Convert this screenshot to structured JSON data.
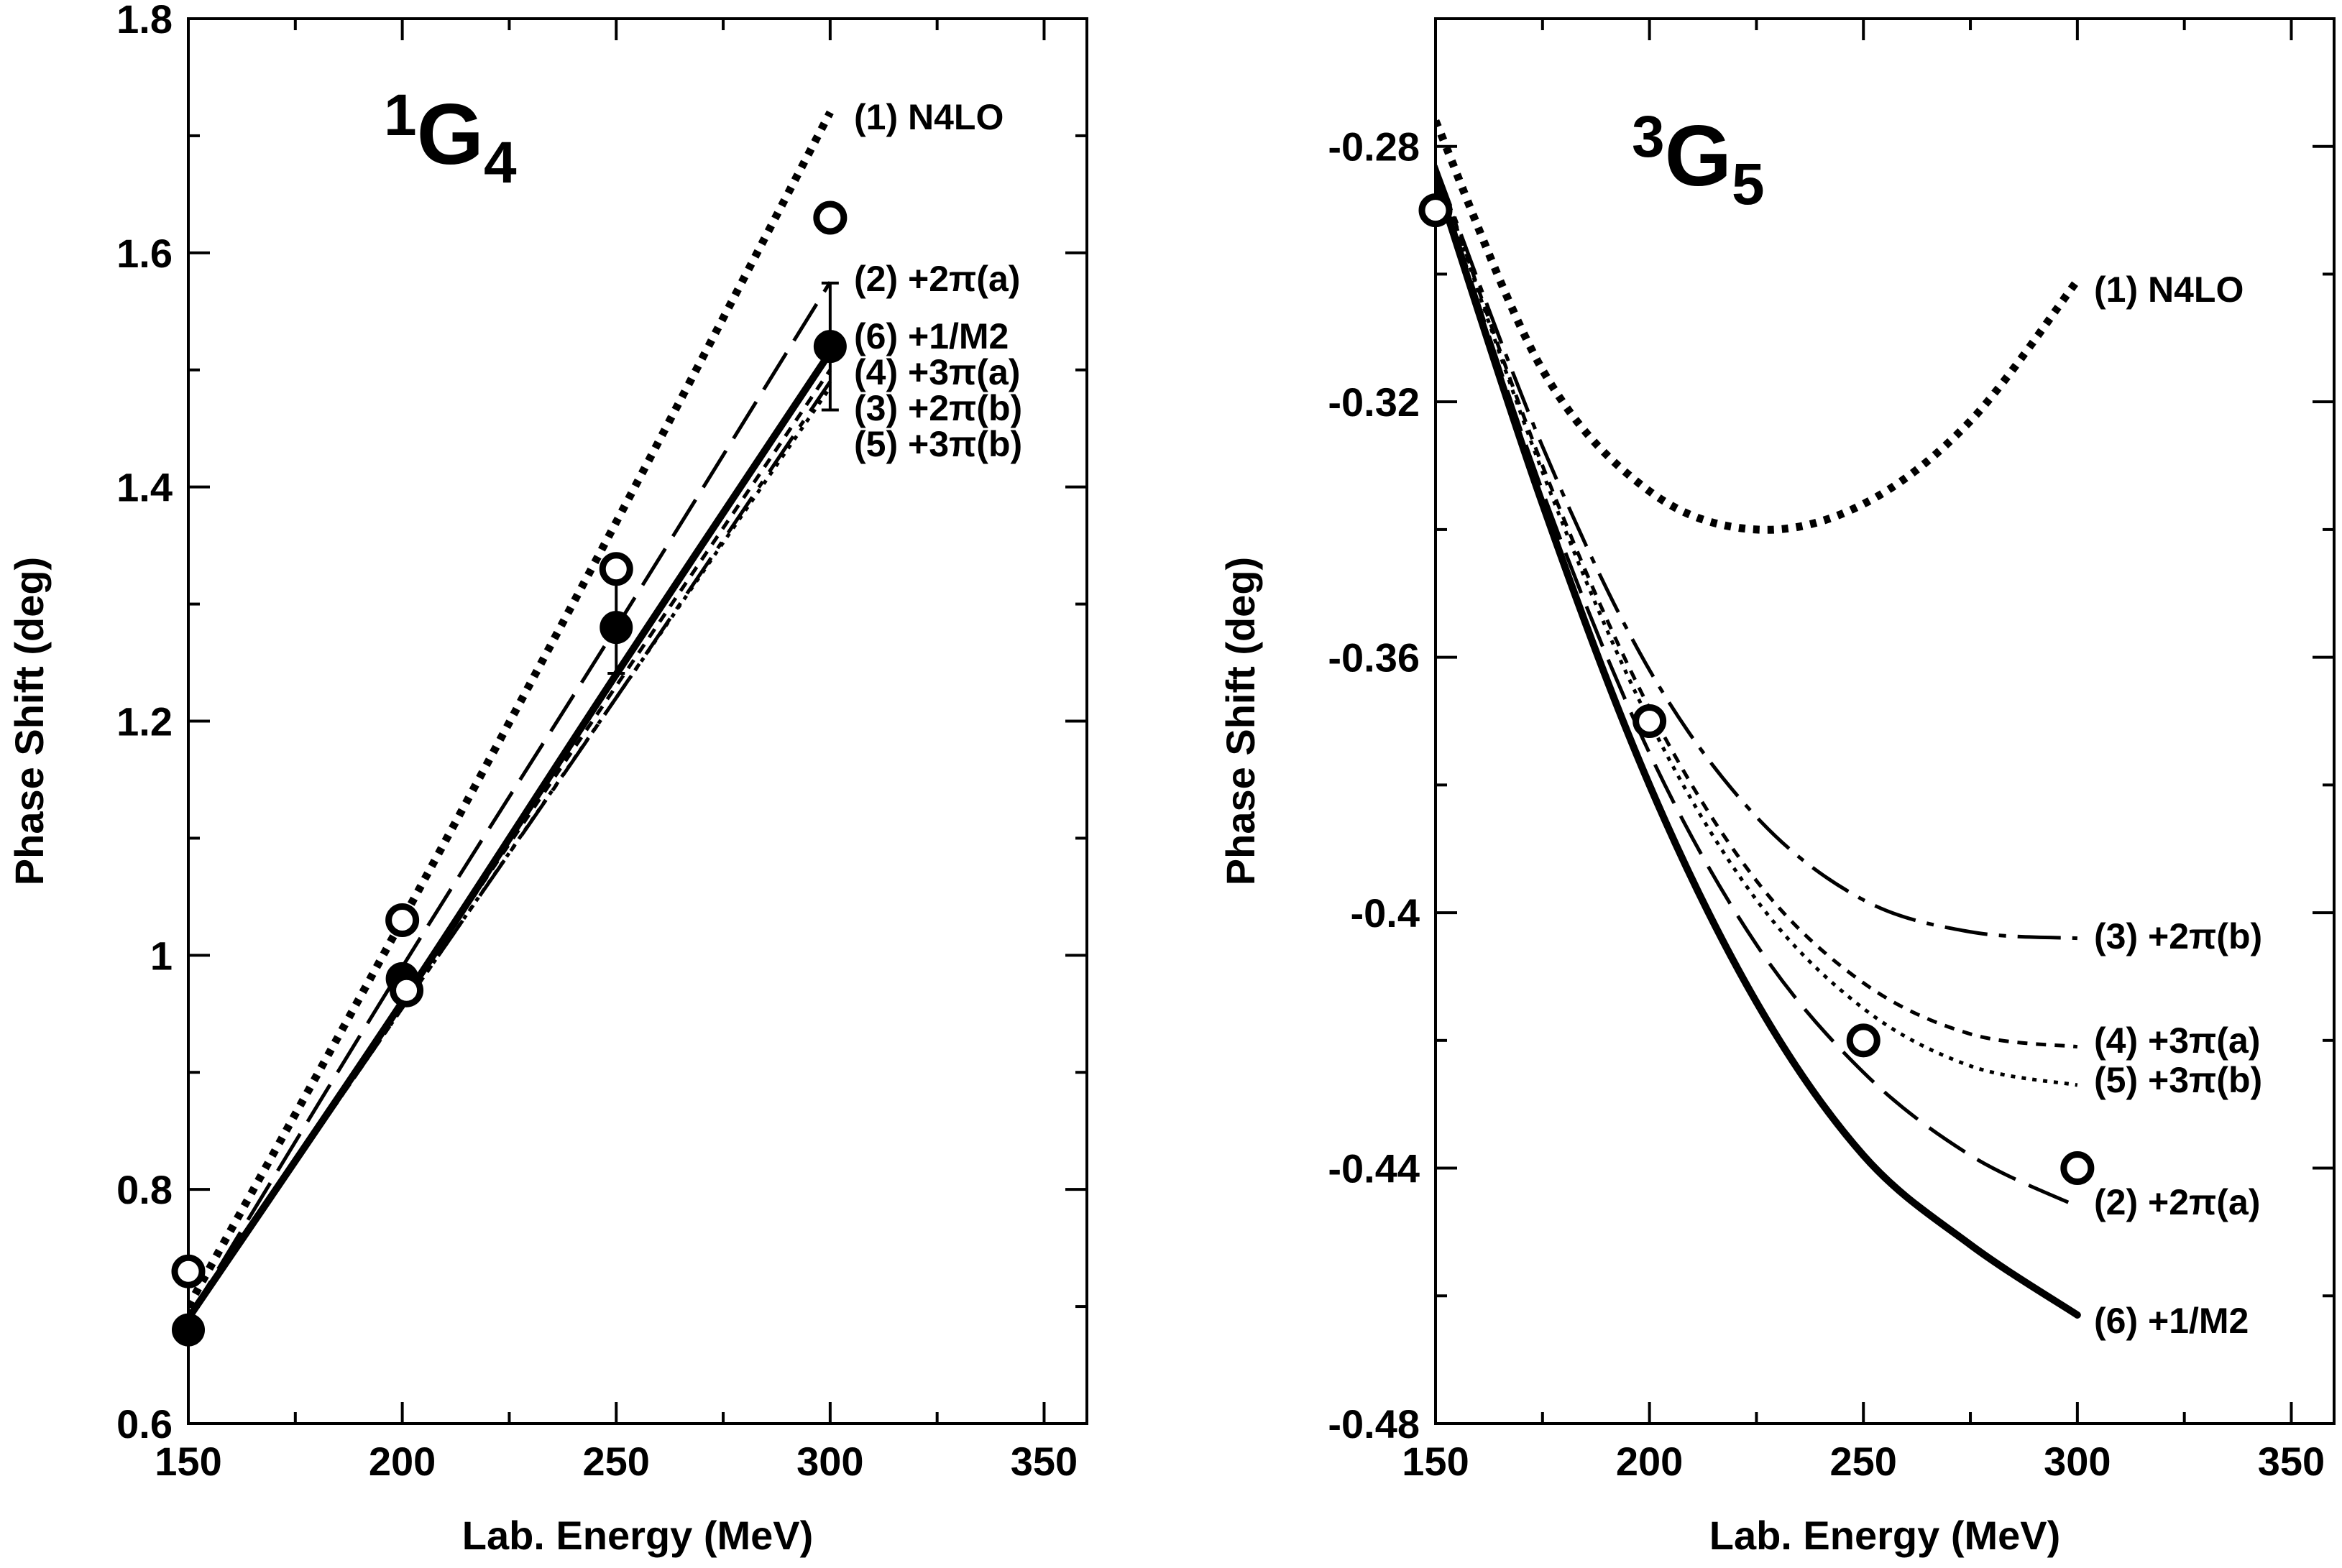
{
  "panels": [
    {
      "id": "1G4",
      "wave": {
        "sup": "1",
        "main": "G",
        "sub": "4"
      },
      "xlabel": "Lab. Energy (MeV)",
      "ylabel": "Phase Shift (deg)",
      "x_ticks": [
        "150",
        "200",
        "250",
        "300",
        "350"
      ],
      "y_ticks": [
        "0.6",
        "0.8",
        "1",
        "1.2",
        "1.4",
        "1.6",
        "1.8"
      ],
      "series_labels": [
        "(1) N4LO",
        "(2) +2π(a)",
        "(6) +1/M2",
        "(4) +3π(a)",
        "(3) +2π(b)",
        "(5) +3π(b)"
      ]
    },
    {
      "id": "3G5",
      "wave": {
        "sup": "3",
        "main": "G",
        "sub": "5"
      },
      "xlabel": "Lab. Energy (MeV)",
      "ylabel": "Phase Shift (deg)",
      "x_ticks": [
        "150",
        "200",
        "250",
        "300",
        "350"
      ],
      "y_ticks": [
        "-0.48",
        "-0.44",
        "-0.4",
        "-0.36",
        "-0.32",
        "-0.28"
      ],
      "series_labels": [
        "(1) N4LO",
        "(3) +2π(b)",
        "(4) +3π(a)",
        "(5) +3π(b)",
        "(2) +2π(a)",
        "(6) +1/M2"
      ]
    }
  ],
  "chart_data": [
    {
      "type": "line",
      "title": "1G4",
      "xlabel": "Lab. Energy (MeV)",
      "ylabel": "Phase Shift (deg)",
      "xlim": [
        150,
        360
      ],
      "ylim": [
        0.6,
        1.8
      ],
      "x_ticks": [
        150,
        200,
        250,
        300,
        350
      ],
      "y_ticks": [
        0.6,
        0.8,
        1.0,
        1.2,
        1.4,
        1.6,
        1.8
      ],
      "series": [
        {
          "name": "(1) N4LO",
          "style": "dotted-thick",
          "x": [
            150,
            200,
            250,
            300
          ],
          "y": [
            0.7,
            1.03,
            1.37,
            1.72
          ]
        },
        {
          "name": "(2) +2π(a)",
          "style": "long-dash",
          "x": [
            150,
            200,
            250,
            300
          ],
          "y": [
            0.69,
            0.99,
            1.28,
            1.575
          ]
        },
        {
          "name": "(6) +1/M2",
          "style": "solid-thick",
          "x": [
            150,
            200,
            250,
            300
          ],
          "y": [
            0.69,
            0.96,
            1.24,
            1.515
          ]
        },
        {
          "name": "(4) +3π(a)",
          "style": "short-dash",
          "x": [
            150,
            200,
            250,
            300
          ],
          "y": [
            0.69,
            0.96,
            1.23,
            1.5
          ]
        },
        {
          "name": "(3) +2π(b)",
          "style": "dash-dot",
          "x": [
            150,
            200,
            250,
            300
          ],
          "y": [
            0.69,
            0.955,
            1.22,
            1.49
          ]
        },
        {
          "name": "(5) +3π(b)",
          "style": "dotted-thin",
          "x": [
            150,
            200,
            250,
            300
          ],
          "y": [
            0.69,
            0.955,
            1.22,
            1.485
          ]
        }
      ],
      "data_points": [
        {
          "name": "open circles",
          "marker": "open-circle",
          "x": [
            150,
            200,
            250,
            300
          ],
          "y": [
            0.73,
            1.03,
            1.33,
            1.63
          ]
        },
        {
          "name": "filled circles",
          "marker": "filled-circle",
          "x": [
            150,
            200,
            250,
            300
          ],
          "y": [
            0.68,
            0.98,
            1.28,
            1.52
          ],
          "err": [
            0.0,
            0.0,
            0.03,
            0.045
          ]
        },
        {
          "name": "extra open circle",
          "marker": "open-circle",
          "x": [
            201
          ],
          "y": [
            0.97
          ]
        }
      ]
    },
    {
      "type": "line",
      "title": "3G5",
      "xlabel": "Lab. Energy (MeV)",
      "ylabel": "Phase Shift (deg)",
      "xlim": [
        150,
        360
      ],
      "ylim": [
        -0.48,
        -0.26
      ],
      "x_ticks": [
        150,
        200,
        250,
        300,
        350
      ],
      "y_ticks": [
        -0.48,
        -0.44,
        -0.4,
        -0.36,
        -0.32,
        -0.28
      ],
      "series": [
        {
          "name": "(1) N4LO",
          "style": "dotted-thick",
          "x": [
            150,
            175,
            200,
            225,
            250,
            275,
            300
          ],
          "y": [
            -0.276,
            -0.315,
            -0.334,
            -0.34,
            -0.336,
            -0.323,
            -0.301
          ]
        },
        {
          "name": "(3) +2π(b)",
          "style": "dash-dot",
          "x": [
            150,
            175,
            200,
            225,
            250,
            275,
            300
          ],
          "y": [
            -0.283,
            -0.327,
            -0.362,
            -0.385,
            -0.398,
            -0.403,
            -0.404
          ]
        },
        {
          "name": "(4) +3π(a)",
          "style": "short-dash",
          "x": [
            150,
            175,
            200,
            225,
            250,
            275,
            300
          ],
          "y": [
            -0.283,
            -0.33,
            -0.368,
            -0.395,
            -0.411,
            -0.419,
            -0.421
          ]
        },
        {
          "name": "(5) +3π(b)",
          "style": "dotted-thin",
          "x": [
            150,
            175,
            200,
            225,
            250,
            275,
            300
          ],
          "y": [
            -0.283,
            -0.331,
            -0.37,
            -0.398,
            -0.415,
            -0.424,
            -0.427
          ]
        },
        {
          "name": "(2) +2π(a)",
          "style": "long-dash",
          "x": [
            150,
            175,
            200,
            225,
            250,
            275,
            300
          ],
          "y": [
            -0.284,
            -0.334,
            -0.375,
            -0.405,
            -0.425,
            -0.438,
            -0.446
          ]
        },
        {
          "name": "(6) +1/M2",
          "style": "solid-thick",
          "x": [
            150,
            175,
            200,
            225,
            250,
            275,
            300
          ],
          "y": [
            -0.285,
            -0.336,
            -0.38,
            -0.414,
            -0.438,
            -0.452,
            -0.463
          ]
        }
      ],
      "data_points": [
        {
          "name": "open circles",
          "marker": "open-circle",
          "x": [
            150,
            200,
            250,
            300
          ],
          "y": [
            -0.29,
            -0.37,
            -0.42,
            -0.44
          ]
        }
      ]
    }
  ]
}
